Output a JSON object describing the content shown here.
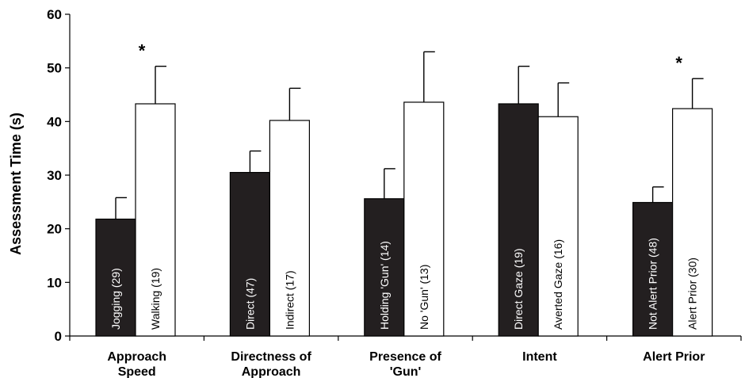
{
  "chart_data": {
    "type": "bar",
    "ylabel": "Assessment Time (s)",
    "ylim": [
      0,
      60
    ],
    "yticks": [
      "0",
      "10",
      "20",
      "30",
      "40",
      "50",
      "60"
    ],
    "colors": {
      "dark": "#231f20",
      "light": "#ffffff",
      "stroke": "#000000"
    },
    "groups": [
      {
        "label_lines": [
          "Approach",
          "Speed"
        ],
        "significant": true,
        "significance_mark": "*",
        "bars": [
          {
            "label": "Jogging (29)",
            "value": 21.8,
            "error": 4.0,
            "fill": "dark"
          },
          {
            "label": "Walking (19)",
            "value": 43.3,
            "error": 7.0,
            "fill": "light"
          }
        ]
      },
      {
        "label_lines": [
          "Directness of",
          "Approach"
        ],
        "significant": false,
        "bars": [
          {
            "label": "Direct (47)",
            "value": 30.5,
            "error": 4.0,
            "fill": "dark"
          },
          {
            "label": "Indirect (17)",
            "value": 40.2,
            "error": 6.0,
            "fill": "light"
          }
        ]
      },
      {
        "label_lines": [
          "Presence of",
          "'Gun'"
        ],
        "significant": false,
        "bars": [
          {
            "label": "Holding 'Gun' (14)",
            "value": 25.6,
            "error": 5.6,
            "fill": "dark"
          },
          {
            "label": "No 'Gun' (13)",
            "value": 43.6,
            "error": 9.4,
            "fill": "light"
          }
        ]
      },
      {
        "label_lines": [
          "Intent"
        ],
        "significant": false,
        "bars": [
          {
            "label": "Direct Gaze (19)",
            "value": 43.3,
            "error": 7.0,
            "fill": "dark"
          },
          {
            "label": "Averted Gaze (16)",
            "value": 40.9,
            "error": 6.3,
            "fill": "light"
          }
        ]
      },
      {
        "label_lines": [
          "Alert Prior"
        ],
        "significant": true,
        "significance_mark": "*",
        "bars": [
          {
            "label": "Not Alert Prior (48)",
            "value": 24.9,
            "error": 2.9,
            "fill": "dark"
          },
          {
            "label": "Alert Prior (30)",
            "value": 42.4,
            "error": 5.6,
            "fill": "light"
          }
        ]
      }
    ]
  }
}
